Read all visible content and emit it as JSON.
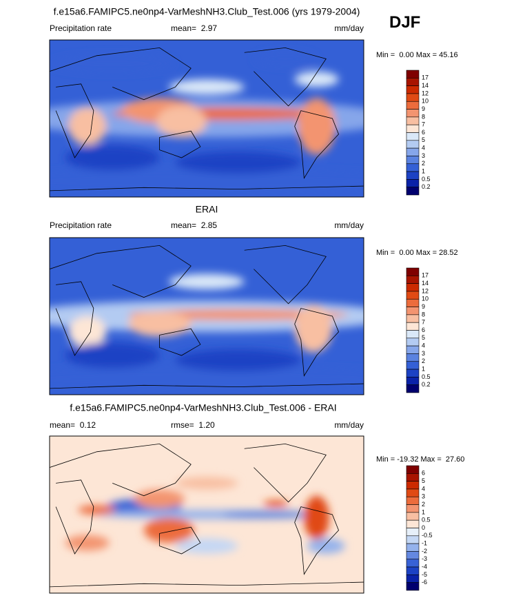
{
  "season": "DJF",
  "panels": [
    {
      "title": "f.e15a6.FAMIPC5.ne0np4-VarMeshNH3.Club_Test.006 (yrs 1979-2004)",
      "left_label": "Precipitation rate",
      "center_label": "mean=  2.97",
      "units": "mm/day",
      "stats": "Min =  0.00 Max = 45.16",
      "colorbar": {
        "labels": [
          "17",
          "14",
          "12",
          "10",
          "9",
          "8",
          "7",
          "6",
          "5",
          "4",
          "3",
          "2",
          "1",
          "0.5",
          "0.2"
        ],
        "colors": [
          "#7f0000",
          "#a81400",
          "#cc2a00",
          "#e04a14",
          "#ec6c3c",
          "#f39470",
          "#f8bfa2",
          "#fde6d6",
          "#dae8f8",
          "#b3cbf2",
          "#86a6ea",
          "#5a82e0",
          "#3460d6",
          "#1c42c4",
          "#0a22a8",
          "#00006e"
        ]
      }
    },
    {
      "title": "ERAI",
      "left_label": "Precipitation rate",
      "center_label": "mean=  2.85",
      "units": "mm/day",
      "stats": "Min =  0.00 Max = 28.52",
      "colorbar": {
        "labels": [
          "17",
          "14",
          "12",
          "10",
          "9",
          "8",
          "7",
          "6",
          "5",
          "4",
          "3",
          "2",
          "1",
          "0.5",
          "0.2"
        ],
        "colors": [
          "#7f0000",
          "#a81400",
          "#cc2a00",
          "#e04a14",
          "#ec6c3c",
          "#f39470",
          "#f8bfa2",
          "#fde6d6",
          "#dae8f8",
          "#b3cbf2",
          "#86a6ea",
          "#5a82e0",
          "#3460d6",
          "#1c42c4",
          "#0a22a8",
          "#00006e"
        ]
      }
    },
    {
      "title": "f.e15a6.FAMIPC5.ne0np4-VarMeshNH3.Club_Test.006 - ERAI",
      "left_label": "mean=  0.12",
      "center_label": "rmse=  1.20",
      "units": "mm/day",
      "stats": "Min = -19.32 Max =  27.60",
      "colorbar": {
        "labels": [
          "6",
          "5",
          "4",
          "3",
          "2",
          "1",
          "0.5",
          "0",
          "-0.5",
          "-1",
          "-2",
          "-3",
          "-4",
          "-5",
          "-6"
        ],
        "colors": [
          "#7f0000",
          "#a81400",
          "#cc2a00",
          "#e04a14",
          "#ec6c3c",
          "#f39470",
          "#f8bfa2",
          "#fde6d6",
          "#e6eff9",
          "#c4d7f4",
          "#94b2ec",
          "#6488e0",
          "#3862d6",
          "#1c42c4",
          "#0a22a8",
          "#00006e"
        ]
      }
    }
  ]
}
